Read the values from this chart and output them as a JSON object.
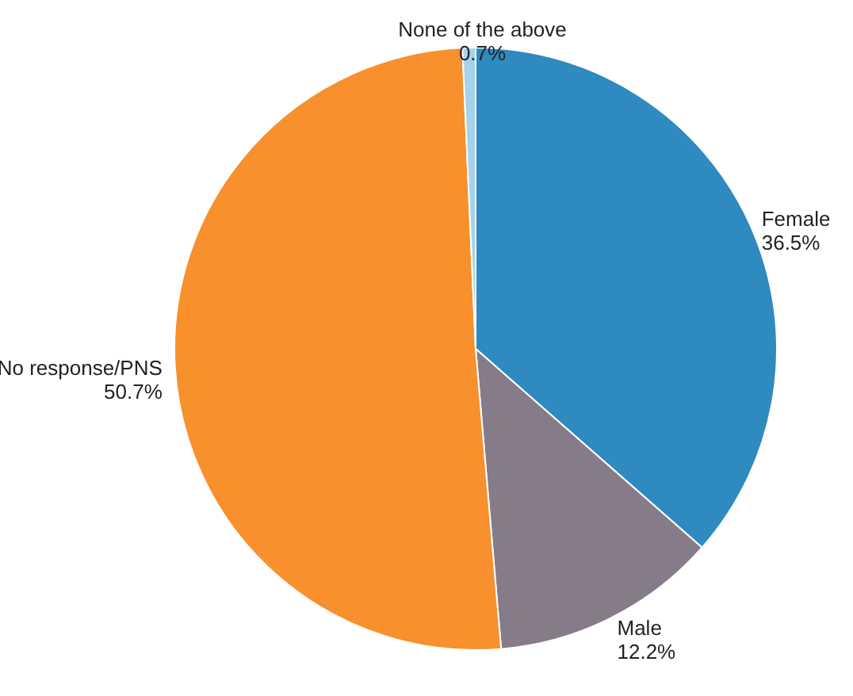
{
  "chart_data": {
    "type": "pie",
    "categories": [
      "Female",
      "Male",
      "No response/PNS",
      "None of the above"
    ],
    "values": [
      36.5,
      12.2,
      50.7,
      0.7
    ],
    "colors": [
      "#2f8abf",
      "#857b89",
      "#f7902d",
      "#a6d3ec"
    ],
    "value_labels": [
      "36.5%",
      "12.2%",
      "50.7%",
      "0.7%"
    ]
  }
}
